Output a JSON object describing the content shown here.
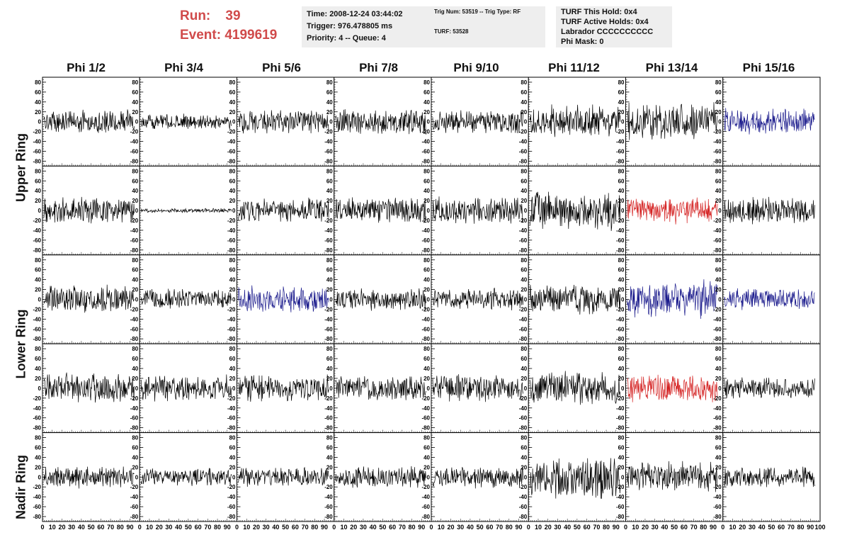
{
  "header": {
    "run_label": "Run:    39",
    "event_label": "Event: 4199619",
    "time": "Time: 2008-12-24 03:44:02",
    "trigger": "Trigger: 976.478805 ms",
    "priority": "Priority: 4 -- Queue: 4",
    "trig_num": "Trig Num: 53519 -- Trig Type: RF",
    "turf": "TURF: 53528",
    "turf_this_hold": "TURF This Hold: 0x4",
    "turf_active_holds": "TURF Active Holds: 0x4",
    "labrador": "Labrador CCCCCCCCCC",
    "phi_mask": "Phi Mask: 0"
  },
  "columns": [
    "Phi 1/2",
    "Phi 3/4",
    "Phi 5/6",
    "Phi 7/8",
    "Phi 9/10",
    "Phi 11/12",
    "Phi 13/14",
    "Phi 15/16"
  ],
  "ring_labels": [
    "Upper Ring",
    "Lower Ring",
    "Nadir Ring"
  ],
  "y_ticks": [
    80,
    60,
    40,
    20,
    0,
    -20,
    -40,
    -60,
    -80
  ],
  "x_ticks": [
    0,
    10,
    20,
    30,
    40,
    50,
    60,
    70,
    80,
    90,
    100
  ],
  "colors": {
    "default_trace": "#000000",
    "blue_trace": "#1a1a8c",
    "red_trace": "#d42020"
  },
  "chart_data": {
    "type": "line",
    "xlim": [
      0,
      100
    ],
    "ylim": [
      -90,
      90
    ],
    "rows": 5,
    "cols": 8,
    "highlighted_panels": [
      {
        "row": 0,
        "col": 7,
        "color": "blue"
      },
      {
        "row": 1,
        "col": 6,
        "color": "red"
      },
      {
        "row": 2,
        "col": 2,
        "color": "blue"
      },
      {
        "row": 2,
        "col": 6,
        "color": "blue"
      },
      {
        "row": 2,
        "col": 7,
        "color": "blue"
      },
      {
        "row": 3,
        "col": 6,
        "color": "red"
      }
    ],
    "amplitudes": [
      [
        22,
        14,
        22,
        24,
        22,
        30,
        35,
        25
      ],
      [
        25,
        4,
        22,
        25,
        25,
        35,
        25,
        25
      ],
      [
        25,
        20,
        25,
        20,
        20,
        28,
        35,
        20
      ],
      [
        28,
        25,
        25,
        22,
        25,
        30,
        25,
        20
      ],
      [
        20,
        16,
        18,
        20,
        20,
        40,
        28,
        20
      ]
    ]
  }
}
